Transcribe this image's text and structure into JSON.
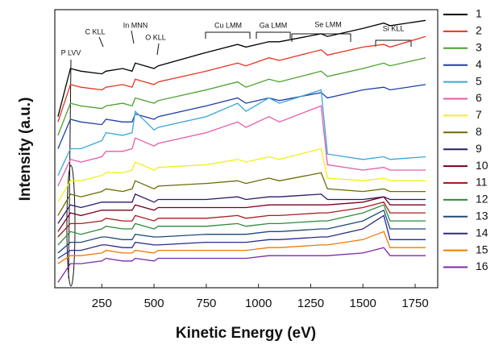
{
  "chart_data": {
    "type": "line",
    "xlabel": "Kinetic Energy (eV)",
    "ylabel": "Intensity (a.u.)",
    "xlim": [
      25,
      1858
    ],
    "ylim": [
      -2,
      102
    ],
    "xticks": [
      250,
      500,
      750,
      1000,
      1250,
      1500,
      1750
    ],
    "annotations": [
      "P LVV",
      "C KLL",
      "In MNN",
      "O KLL",
      "Cu LMM",
      "Ga LMM",
      "Se LMM",
      "Si KLL"
    ],
    "x": [
      40,
      100,
      150,
      250,
      270,
      350,
      395,
      410,
      500,
      520,
      750,
      900,
      940,
      1050,
      1100,
      1300,
      1330,
      1500,
      1600,
      1630,
      1800
    ],
    "series": [
      {
        "name": "1",
        "color": "#000000",
        "values": [
          62,
          80,
          79,
          78,
          79,
          80,
          79,
          82,
          80,
          81,
          86,
          89,
          88,
          90,
          90,
          93,
          92,
          95,
          97,
          96,
          98
        ]
      },
      {
        "name": "2",
        "color": "#e8321e",
        "values": [
          60,
          74,
          73,
          72,
          73,
          74,
          73,
          76,
          74,
          75,
          79,
          82,
          81,
          84,
          83,
          87,
          85,
          88,
          89,
          88,
          92
        ]
      },
      {
        "name": "3",
        "color": "#4aa02c",
        "values": [
          55,
          67,
          66,
          65,
          66,
          67,
          66,
          69,
          67,
          68,
          72,
          75,
          73,
          76,
          75,
          79,
          77,
          80,
          82,
          81,
          84
        ]
      },
      {
        "name": "4",
        "color": "#1f3fa8",
        "values": [
          50,
          61,
          60,
          59,
          61,
          60,
          60,
          63,
          61,
          62,
          66,
          69,
          67,
          69,
          68,
          71,
          69,
          72,
          73,
          72,
          74
        ]
      },
      {
        "name": "5",
        "color": "#3aa6d8",
        "values": [
          40,
          50,
          50,
          53,
          56,
          55,
          56,
          64,
          57,
          58,
          62,
          67,
          64,
          69,
          67,
          72,
          48,
          46,
          47,
          46,
          47
        ]
      },
      {
        "name": "6",
        "color": "#e85aa8",
        "values": [
          36,
          46,
          45,
          47,
          49,
          49,
          50,
          54,
          51,
          52,
          56,
          60,
          58,
          62,
          60,
          66,
          44,
          42,
          43,
          42,
          42
        ]
      },
      {
        "name": "7",
        "color": "#f2ef1a",
        "values": [
          30,
          38,
          38,
          40,
          41,
          41,
          42,
          45,
          42,
          43,
          44,
          46,
          45,
          47,
          46,
          50,
          39,
          38,
          39,
          38,
          38
        ]
      },
      {
        "name": "8",
        "color": "#6e6a00",
        "values": [
          25,
          33,
          32,
          34,
          35,
          34,
          35,
          38,
          35,
          36,
          37,
          38,
          37,
          39,
          38,
          41,
          35,
          34,
          35,
          34,
          34
        ]
      },
      {
        "name": "9",
        "color": "#2a1a6e",
        "values": [
          22,
          29,
          28,
          30,
          30,
          30,
          30,
          33,
          30,
          31,
          31,
          32,
          31,
          32,
          32,
          33,
          31,
          31,
          32,
          31,
          31
        ]
      },
      {
        "name": "10",
        "color": "#7a0020",
        "values": [
          19,
          26,
          25,
          27,
          27,
          27,
          27,
          29,
          27,
          28,
          28,
          28,
          28,
          29,
          29,
          29,
          29,
          30,
          32,
          29,
          29
        ]
      },
      {
        "name": "11",
        "color": "#a81c1c",
        "values": [
          17,
          22,
          22,
          23,
          24,
          23,
          23,
          25,
          23,
          24,
          24,
          25,
          24,
          25,
          25,
          26,
          26,
          28,
          30,
          26,
          26
        ]
      },
      {
        "name": "12",
        "color": "#2e8a3a",
        "values": [
          14,
          19,
          18,
          20,
          21,
          20,
          20,
          22,
          20,
          21,
          21,
          22,
          21,
          22,
          22,
          23,
          23,
          26,
          29,
          23,
          23
        ]
      },
      {
        "name": "13",
        "color": "#1a4a7a",
        "values": [
          11,
          15,
          15,
          17,
          17,
          16,
          16,
          18,
          17,
          17,
          18,
          18,
          18,
          19,
          19,
          20,
          20,
          23,
          27,
          20,
          20
        ]
      },
      {
        "name": "14",
        "color": "#2a2a8a",
        "values": [
          9,
          12,
          12,
          14,
          14,
          13,
          13,
          15,
          14,
          14,
          15,
          15,
          15,
          16,
          16,
          17,
          17,
          20,
          25,
          16,
          16
        ]
      },
      {
        "name": "15",
        "color": "#f07a00",
        "values": [
          7,
          10,
          10,
          11,
          12,
          11,
          11,
          12,
          11,
          12,
          12,
          12,
          12,
          13,
          13,
          14,
          14,
          16,
          19,
          13,
          13
        ]
      },
      {
        "name": "16",
        "color": "#7a2aa8",
        "values": [
          0,
          7,
          7,
          8,
          9,
          8,
          8,
          9,
          8,
          9,
          9,
          9,
          9,
          10,
          10,
          10,
          10,
          11,
          13,
          10,
          10
        ]
      }
    ]
  }
}
